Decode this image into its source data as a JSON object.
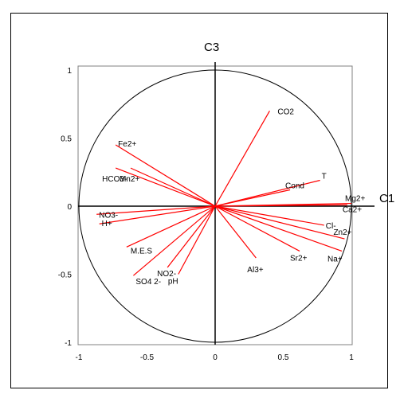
{
  "chart_data": {
    "type": "scatter",
    "subtype": "correlation-circle",
    "title": "",
    "xlabel": "C1",
    "ylabel": "C3",
    "xlim": [
      -1,
      1
    ],
    "ylim": [
      -1,
      1
    ],
    "unit_circle": true,
    "grid": false,
    "vector_color": "#ff0000",
    "x_ticks": [
      "-1",
      "-0.5",
      "0",
      "0.5",
      "1"
    ],
    "y_ticks": [
      "1",
      "0.5",
      "0",
      "-0.5",
      "-1"
    ],
    "series": [
      {
        "points": [
          {
            "label": "CO2",
            "x": 0.4,
            "y": 0.7
          },
          {
            "label": "Fe2+",
            "x": -0.73,
            "y": 0.45
          },
          {
            "label": "HCO3-",
            "x": -0.73,
            "y": 0.28
          },
          {
            "label": "Mn2+",
            "x": -0.62,
            "y": 0.28
          },
          {
            "label": "T",
            "x": 0.77,
            "y": 0.19
          },
          {
            "label": "Cond",
            "x": 0.55,
            "y": 0.12
          },
          {
            "label": "Mg2+",
            "x": 1.0,
            "y": 0.02
          },
          {
            "label": "Ca2+",
            "x": 0.97,
            "y": 0.01
          },
          {
            "label": "NO3-",
            "x": -0.87,
            "y": -0.06
          },
          {
            "label": "H+",
            "x": -0.85,
            "y": -0.13
          },
          {
            "label": "Cl-",
            "x": 0.8,
            "y": -0.14
          },
          {
            "label": "Zn2+",
            "x": 0.95,
            "y": -0.24
          },
          {
            "label": "Na+",
            "x": 0.93,
            "y": -0.33
          },
          {
            "label": "Sr2+",
            "x": 0.62,
            "y": -0.33
          },
          {
            "label": "Al3+",
            "x": 0.3,
            "y": -0.38
          },
          {
            "label": "M.E.S",
            "x": -0.65,
            "y": -0.3
          },
          {
            "label": "NO2-",
            "x": -0.35,
            "y": -0.45
          },
          {
            "label": "SO4 2-",
            "x": -0.6,
            "y": -0.51
          },
          {
            "label": "pH",
            "x": -0.27,
            "y": -0.5
          }
        ]
      }
    ]
  }
}
